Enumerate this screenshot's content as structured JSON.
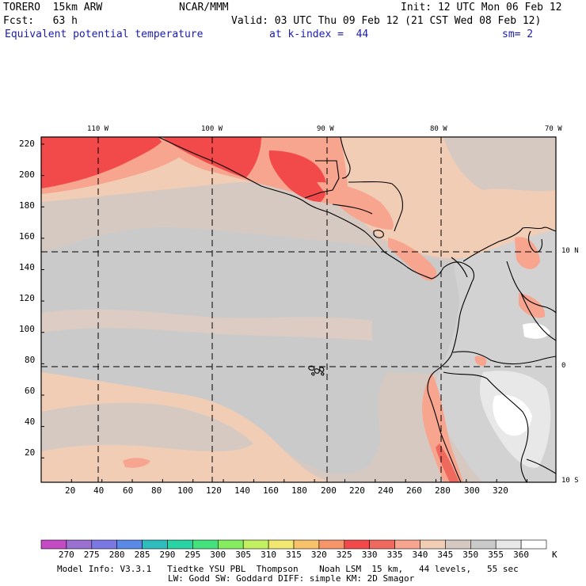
{
  "header": {
    "model": "TORERO  15km ARW",
    "org": "NCAR/MMM",
    "init": "Init: 12 UTC Mon 06 Feb 12",
    "fcst": "Fcst:   63 h",
    "valid": "Valid: 03 UTC Thu 09 Feb 12 (21 CST Wed 08 Feb 12)",
    "field": "Equivalent potential temperature",
    "level": "at k-index =  44",
    "smoothing": "sm= 2"
  },
  "map": {
    "top_lon_labels": [
      "110 W",
      "100 W",
      "90 W",
      "80 W",
      "70 W"
    ],
    "left_labels": [
      "220",
      "200",
      "180",
      "160",
      "140",
      "120",
      "100",
      "80",
      "60",
      "40",
      "20"
    ],
    "bottom_labels": [
      "20",
      "40",
      "60",
      "80",
      "100",
      "120",
      "140",
      "160",
      "180",
      "200",
      "220",
      "240",
      "260",
      "280",
      "300",
      "320"
    ],
    "right_lat_labels": [
      "10 N",
      "0",
      "10 S"
    ],
    "colors": {
      "very_warm": "#f24a4a",
      "warm": "#f7a58f",
      "light_salmon": "#f2cdb5",
      "gray_beige": "#d6c9c2",
      "light_gray": "#cacaca",
      "pale_gray": "#e8e8e8",
      "white": "#ffffff"
    }
  },
  "colorbar": {
    "labels": [
      "270",
      "275",
      "280",
      "285",
      "290",
      "295",
      "300",
      "305",
      "310",
      "315",
      "320",
      "325",
      "330",
      "335",
      "340",
      "345",
      "350",
      "355",
      "360"
    ],
    "unit": "K",
    "colors": [
      "#c44bc4",
      "#9a70d0",
      "#7b78e4",
      "#5a8ae6",
      "#2ebcbc",
      "#28d4a4",
      "#44e27c",
      "#86ec60",
      "#c2f060",
      "#f0e870",
      "#f7c26a",
      "#f6946a",
      "#f24a4a",
      "#f0695f",
      "#f7a58f",
      "#f2cdb5",
      "#d6c9c2",
      "#cacaca",
      "#e8e8e8",
      "#ffffff"
    ]
  },
  "footer": {
    "line1": "Model Info: V3.3.1   Tiedtke YSU PBL  Thompson    Noah LSM  15 km,   44 levels,   55 sec",
    "line2": "LW: Godd SW: Goddard DIFF: simple KM: 2D Smagor"
  }
}
